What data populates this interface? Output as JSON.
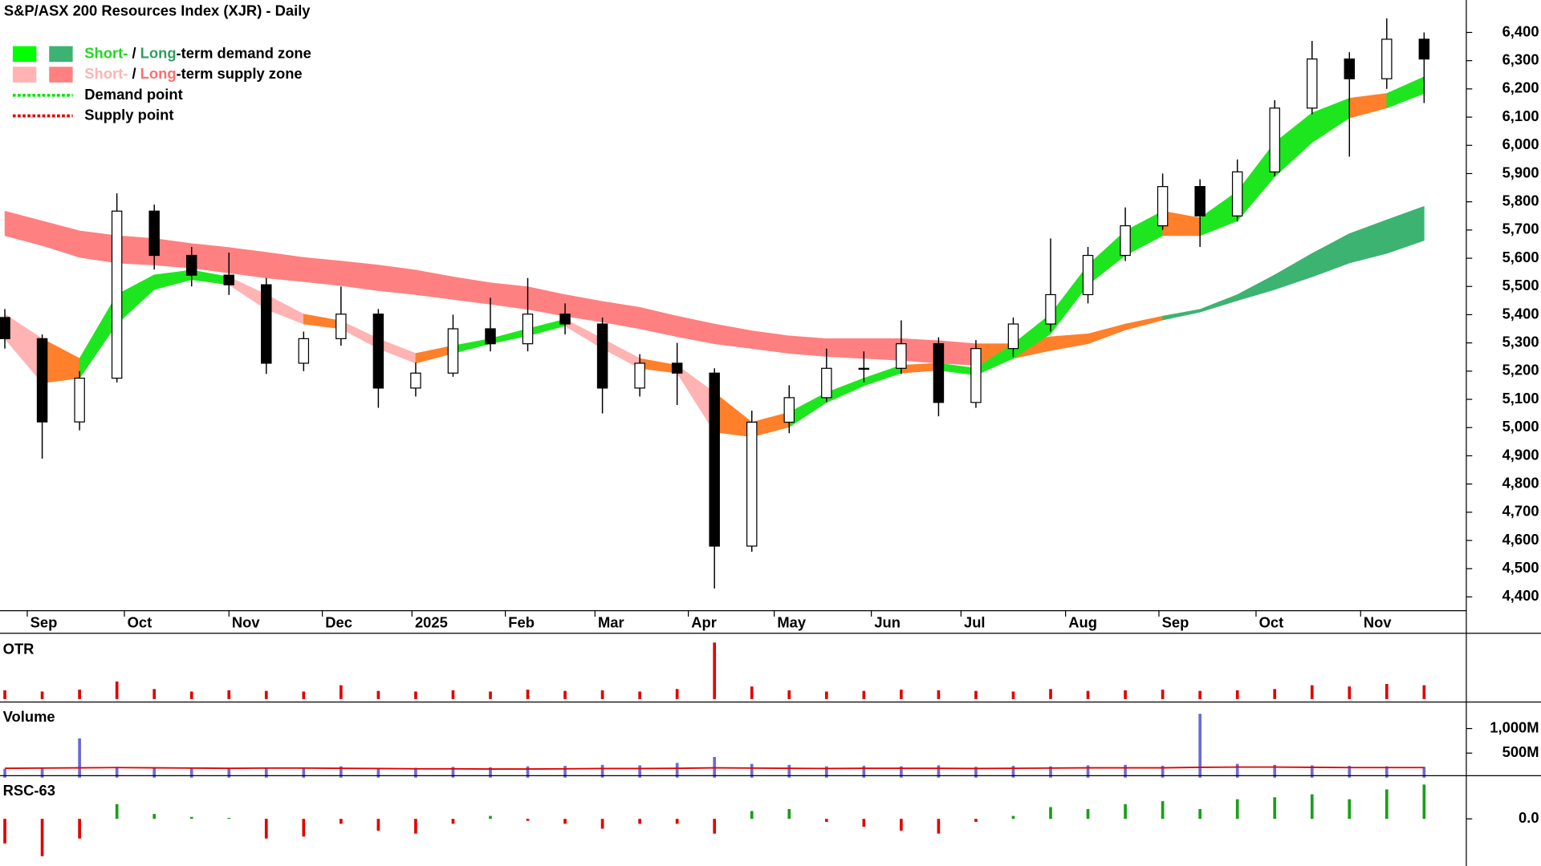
{
  "chart_data": [
    {
      "type": "candlestick",
      "title": "S&P/ASX 200 Resources Index (XJR) - Daily",
      "legend": [
        {
          "parts": [
            {
              "text": "Short-",
              "color": "#1ed91e"
            },
            {
              "text": " / ",
              "color": "#000000"
            },
            {
              "text": "Long",
              "color": "#2e9e5e"
            },
            {
              "text": "-term demand zone",
              "color": "#000000"
            }
          ],
          "swatches": [
            "#00ff00",
            "#3cb371"
          ]
        },
        {
          "parts": [
            {
              "text": "Short-",
              "color": "#ffb3b3"
            },
            {
              "text": " / ",
              "color": "#000000"
            },
            {
              "text": "Long",
              "color": "#ff6e6e"
            },
            {
              "text": "-term supply zone",
              "color": "#000000"
            }
          ],
          "swatches": [
            "#ffb3b3",
            "#ff8080"
          ]
        },
        {
          "parts": [
            {
              "text": "Demand point",
              "color": "#000000"
            }
          ],
          "line": "#00e600"
        },
        {
          "parts": [
            {
              "text": "Supply point",
              "color": "#000000"
            }
          ],
          "line": "#e60000"
        }
      ],
      "x": [
        0,
        1,
        2,
        3,
        4,
        5,
        6,
        7,
        8,
        9,
        10,
        11,
        12,
        13,
        14,
        15,
        16,
        17,
        18,
        19,
        20,
        21,
        22,
        23,
        24,
        25,
        26,
        27,
        28,
        29,
        30,
        31,
        32,
        33,
        34,
        35,
        36,
        37,
        38
      ],
      "open": [
        5390,
        5315,
        5020,
        5175,
        5767,
        5610,
        5540,
        5506,
        5228,
        5315,
        5402,
        5140,
        5193,
        5350,
        5297,
        5402,
        5367,
        5140,
        5228,
        5193,
        4580,
        5019,
        5106,
        5210,
        5210,
        5297,
        5089,
        5280,
        5367,
        5471,
        5610,
        5715,
        5854,
        5750,
        5906,
        6132,
        6306,
        6236,
        6376
      ],
      "high": [
        5420,
        5330,
        5200,
        5830,
        5790,
        5640,
        5620,
        5530,
        5340,
        5500,
        5420,
        5230,
        5400,
        5460,
        5530,
        5440,
        5390,
        5260,
        5300,
        5210,
        5060,
        5150,
        5280,
        5270,
        5380,
        5320,
        5310,
        5390,
        5670,
        5640,
        5780,
        5900,
        5880,
        5950,
        6160,
        6370,
        6330,
        6450,
        6400
      ],
      "low": [
        5280,
        4890,
        4990,
        5160,
        5560,
        5500,
        5470,
        5190,
        5200,
        5290,
        5070,
        5110,
        5180,
        5270,
        5270,
        5330,
        5050,
        5110,
        5080,
        4430,
        4560,
        4980,
        5090,
        5160,
        5190,
        5040,
        5070,
        5250,
        5340,
        5440,
        5590,
        5700,
        5640,
        5730,
        5890,
        6110,
        5960,
        6200,
        6150
      ],
      "close": [
        5315,
        5020,
        5175,
        5767,
        5610,
        5540,
        5506,
        5228,
        5315,
        5402,
        5140,
        5193,
        5350,
        5297,
        5402,
        5367,
        5140,
        5228,
        5193,
        4580,
        5019,
        5106,
        5210,
        5210,
        5297,
        5089,
        5280,
        5367,
        5471,
        5610,
        5715,
        5854,
        5750,
        5906,
        6132,
        6306,
        6236,
        6376,
        6306
      ],
      "bands": [
        {
          "upper": [
            5767,
            5732,
            5697,
            5680,
            5670,
            5652,
            5638,
            5621,
            5603,
            5590,
            5576,
            5558,
            5534,
            5513,
            5499,
            5471,
            5447,
            5426,
            5395,
            5367,
            5343,
            5325,
            5315,
            5315,
            5315,
            5308,
            5297,
            5297,
            5322,
            5332,
            5367,
            5395,
            5419,
            5471,
            5541,
            5617,
            5687,
            5736,
            5784
          ],
          "lower": [
            5680,
            5645,
            5603,
            5583,
            5576,
            5565,
            5548,
            5530,
            5517,
            5503,
            5485,
            5471,
            5454,
            5437,
            5419,
            5395,
            5374,
            5350,
            5322,
            5297,
            5280,
            5263,
            5252,
            5245,
            5238,
            5228,
            5221,
            5245,
            5273,
            5297,
            5346,
            5381,
            5409,
            5450,
            5489,
            5534,
            5583,
            5617,
            5663
          ],
          "colors": [
            "#ff8080",
            "#ff8080",
            "#ff8080",
            "#ff8080",
            "#ff8080",
            "#ff8080",
            "#ff8080",
            "#ff8080",
            "#ff8080",
            "#ff8080",
            "#ff8080",
            "#ff8080",
            "#ff8080",
            "#ff8080",
            "#ff8080",
            "#ff8080",
            "#ff8080",
            "#ff8080",
            "#ff8080",
            "#ff8080",
            "#ff8080",
            "#ff8080",
            "#ff8080",
            "#ff8080",
            "#ff8080",
            "#ff8080",
            "#ff7f2a",
            "#ff7f2a",
            "#ff7f2a",
            "#ff7f2a",
            "#ff7f2a",
            "#3cb371",
            "#3cb371",
            "#3cb371",
            "#3cb371",
            "#3cb371",
            "#3cb371",
            "#3cb371"
          ]
        },
        {
          "upper": [
            5402,
            5315,
            5245,
            5471,
            5541,
            5558,
            5534,
            5471,
            5402,
            5378,
            5315,
            5263,
            5290,
            5315,
            5350,
            5384,
            5315,
            5245,
            5221,
            5124,
            5019,
            5054,
            5124,
            5175,
            5221,
            5228,
            5210,
            5297,
            5402,
            5576,
            5697,
            5767,
            5743,
            5837,
            6010,
            6115,
            6167,
            6184,
            6243
          ],
          "lower": [
            5315,
            5158,
            5175,
            5367,
            5489,
            5524,
            5506,
            5419,
            5367,
            5350,
            5280,
            5228,
            5263,
            5297,
            5325,
            5360,
            5280,
            5210,
            5193,
            4984,
            4967,
            5002,
            5089,
            5148,
            5193,
            5203,
            5186,
            5245,
            5332,
            5506,
            5610,
            5680,
            5680,
            5732,
            5889,
            6010,
            6097,
            6132,
            6184
          ],
          "colors": [
            "#ffb3b3",
            "#ff7f2a",
            "#1ee61e",
            "#1ee61e",
            "#1ee61e",
            "#1ee61e",
            "#ffb3b3",
            "#ffb3b3",
            "#ff7f2a",
            "#ffb3b3",
            "#ffb3b3",
            "#ff7f2a",
            "#1ee61e",
            "#1ee61e",
            "#1ee61e",
            "#ffb3b3",
            "#ffb3b3",
            "#ff7f2a",
            "#ffb3b3",
            "#ff7f2a",
            "#ff7f2a",
            "#1ee61e",
            "#1ee61e",
            "#1ee61e",
            "#ff7f2a",
            "#1ee61e",
            "#1ee61e",
            "#1ee61e",
            "#1ee61e",
            "#1ee61e",
            "#1ee61e",
            "#ff7f2a",
            "#1ee61e",
            "#1ee61e",
            "#1ee61e",
            "#1ee61e",
            "#ff7f2a",
            "#1ee61e"
          ]
        }
      ],
      "xlim": [
        -0.13,
        39.13
      ],
      "xticks": [
        {
          "value": 0.6,
          "label": "Sep"
        },
        {
          "value": 3.2,
          "label": "Oct"
        },
        {
          "value": 6.0,
          "label": "Nov"
        },
        {
          "value": 8.5,
          "label": "Dec"
        },
        {
          "value": 10.9,
          "label": "2025"
        },
        {
          "value": 13.4,
          "label": "Feb"
        },
        {
          "value": 15.8,
          "label": "Mar"
        },
        {
          "value": 18.3,
          "label": "Apr"
        },
        {
          "value": 20.6,
          "label": "May"
        },
        {
          "value": 23.2,
          "label": "Jun"
        },
        {
          "value": 25.6,
          "label": "Jul"
        },
        {
          "value": 28.4,
          "label": "Aug"
        },
        {
          "value": 30.9,
          "label": "Sep"
        },
        {
          "value": 33.5,
          "label": "Oct"
        },
        {
          "value": 36.3,
          "label": "Nov"
        }
      ],
      "ylim": [
        4358,
        6515
      ],
      "yticks": [
        {
          "value": 4400,
          "label": "4,400"
        },
        {
          "value": 4500,
          "label": "4,500"
        },
        {
          "value": 4600,
          "label": "4,600"
        },
        {
          "value": 4700,
          "label": "4,700"
        },
        {
          "value": 4800,
          "label": "4,800"
        },
        {
          "value": 4900,
          "label": "4,900"
        },
        {
          "value": 5000,
          "label": "5,000"
        },
        {
          "value": 5100,
          "label": "5,100"
        },
        {
          "value": 5200,
          "label": "5,200"
        },
        {
          "value": 5300,
          "label": "5,300"
        },
        {
          "value": 5400,
          "label": "5,400"
        },
        {
          "value": 5500,
          "label": "5,500"
        },
        {
          "value": 5600,
          "label": "5,600"
        },
        {
          "value": 5700,
          "label": "5,700"
        },
        {
          "value": 5800,
          "label": "5,800"
        },
        {
          "value": 5900,
          "label": "5,900"
        },
        {
          "value": 6000,
          "label": "6,000"
        },
        {
          "value": 6100,
          "label": "6,100"
        },
        {
          "value": 6200,
          "label": "6,200"
        },
        {
          "value": 6300,
          "label": "6,300"
        },
        {
          "value": 6400,
          "label": "6,400"
        }
      ],
      "grid": false
    },
    {
      "type": "bar",
      "title": "OTR",
      "title_color": "#e00000",
      "color": "#e00000",
      "values": [
        0.14,
        0.12,
        0.15,
        0.28,
        0.16,
        0.12,
        0.14,
        0.13,
        0.12,
        0.22,
        0.13,
        0.12,
        0.14,
        0.12,
        0.15,
        0.13,
        0.14,
        0.12,
        0.16,
        0.9,
        0.2,
        0.14,
        0.12,
        0.13,
        0.15,
        0.14,
        0.13,
        0.12,
        0.16,
        0.13,
        0.14,
        0.15,
        0.13,
        0.14,
        0.16,
        0.22,
        0.2,
        0.24,
        0.22
      ],
      "ylim": [
        0,
        1
      ]
    },
    {
      "type": "bar",
      "title": "Volume",
      "title_color": "#7070c0",
      "color": "#6b6bd6",
      "values": [
        180,
        190,
        800,
        220,
        200,
        190,
        180,
        200,
        210,
        230,
        190,
        200,
        220,
        210,
        230,
        240,
        260,
        250,
        300,
        420,
        280,
        260,
        230,
        240,
        230,
        250,
        220,
        240,
        230,
        250,
        260,
        240,
        1300,
        280,
        260,
        250,
        240,
        230,
        220
      ],
      "average": [
        190,
        195,
        200,
        205,
        200,
        195,
        190,
        195,
        195,
        190,
        185,
        180,
        180,
        175,
        175,
        180,
        185,
        185,
        190,
        200,
        195,
        190,
        185,
        190,
        190,
        190,
        185,
        190,
        195,
        200,
        200,
        200,
        210,
        215,
        215,
        210,
        205,
        205,
        205
      ],
      "average_color": "#e00000",
      "ylim": [
        0,
        1500
      ],
      "yticks": [
        {
          "value": 1000,
          "label": "1,000M"
        },
        {
          "value": 500,
          "label": "500M"
        }
      ]
    },
    {
      "type": "bar",
      "title": "RSC-63",
      "title_color": "#1a9e1a",
      "color": "#1a9e1a",
      "negative_color": "#e00000",
      "values": [
        -0.25,
        -0.38,
        -0.2,
        0.15,
        0.05,
        0.02,
        0.01,
        -0.2,
        -0.18,
        -0.05,
        -0.12,
        -0.15,
        -0.05,
        0.03,
        -0.02,
        -0.05,
        -0.1,
        -0.05,
        -0.05,
        -0.15,
        0.08,
        0.1,
        -0.03,
        -0.08,
        -0.12,
        -0.15,
        -0.03,
        0.03,
        0.12,
        0.1,
        0.15,
        0.18,
        0.1,
        0.2,
        0.22,
        0.25,
        0.2,
        0.3,
        0.35
      ],
      "ylim": [
        -0.48,
        0.42
      ],
      "yticks": [
        {
          "value": 0,
          "label": "0.0"
        }
      ]
    }
  ]
}
